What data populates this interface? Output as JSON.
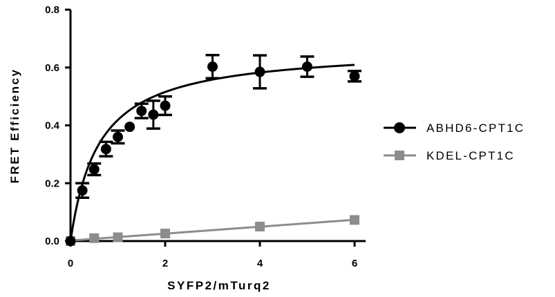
{
  "chart_data": {
    "type": "scatter",
    "xlabel": "SYFP2/mTurq2",
    "ylabel": "FRET Efficiency",
    "xlim": [
      0,
      6.8
    ],
    "ylim": [
      0,
      0.8
    ],
    "x_ticks": [
      0,
      2,
      4,
      6
    ],
    "x_tick_labels": [
      "0",
      "2",
      "4",
      "6"
    ],
    "y_ticks": [
      0,
      0.2,
      0.4,
      0.6,
      0.8
    ],
    "y_tick_labels": [
      "0.0",
      "0.2",
      "0.4",
      "0.6",
      "0.8"
    ],
    "legend_position": "right",
    "series": [
      {
        "name": "ABHD6-CPT1C",
        "color": "#000000",
        "marker": "circle",
        "line": "saturation-fit-curve",
        "fit": {
          "bmax": 0.67,
          "k": 0.6
        },
        "x": [
          0,
          0.25,
          0.5,
          0.75,
          1.0,
          1.25,
          1.5,
          1.75,
          2.0,
          3.0,
          4.0,
          5.0,
          6.0
        ],
        "y": [
          0.0,
          0.175,
          0.248,
          0.318,
          0.36,
          0.395,
          0.45,
          0.437,
          0.468,
          0.603,
          0.585,
          0.603,
          0.57
        ],
        "error": [
          0.0,
          0.025,
          0.02,
          0.025,
          0.022,
          0.0,
          0.025,
          0.048,
          0.032,
          0.04,
          0.057,
          0.035,
          0.018
        ]
      },
      {
        "name": "KDEL-CPT1C",
        "color": "#8c8c8c",
        "marker": "square",
        "line": "linear-fit",
        "x": [
          0,
          0.5,
          1.0,
          2.0,
          4.0,
          6.0
        ],
        "y": [
          0.0,
          0.01,
          0.013,
          0.026,
          0.05,
          0.073
        ],
        "error": [
          0,
          0,
          0,
          0,
          0,
          0
        ]
      }
    ]
  }
}
